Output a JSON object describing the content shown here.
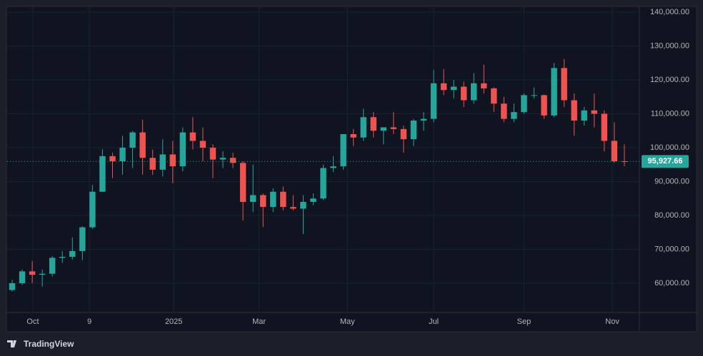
{
  "chart_data": {
    "type": "candlestick",
    "categories": [
      null,
      null,
      null,
      null,
      null,
      null,
      null,
      null,
      null,
      null,
      null,
      null,
      null,
      null,
      null,
      null,
      null,
      null,
      null,
      null,
      null,
      null,
      null,
      null,
      null,
      null,
      null,
      null,
      null,
      null,
      null,
      null,
      null,
      null,
      null,
      null,
      null,
      null,
      null,
      null,
      null,
      null,
      null,
      null,
      null,
      null,
      null,
      null,
      null,
      null,
      null,
      null,
      null,
      null,
      null,
      null,
      null,
      null,
      null,
      null,
      null,
      null
    ],
    "open": [
      58000,
      60000,
      63500,
      62500,
      62800,
      67500,
      67800,
      69500,
      76500,
      87000,
      97500,
      96000,
      100000,
      104500,
      97000,
      93500,
      98000,
      94500,
      104500,
      102000,
      100000,
      96500,
      97000,
      95500,
      84000,
      86000,
      82500,
      87000,
      82500,
      82000,
      84000,
      85000,
      94000,
      94500,
      104000,
      103000,
      109000,
      105000,
      106000,
      105500,
      102500,
      108000,
      108500,
      119000,
      117000,
      118000,
      114000,
      119000,
      117500,
      113000,
      108500,
      110500,
      115500,
      115500,
      109500,
      123500,
      114000,
      108000,
      111000,
      110000,
      102000,
      96000
    ],
    "high": [
      61000,
      64000,
      66500,
      64000,
      68000,
      69500,
      73500,
      76800,
      89000,
      99500,
      98500,
      103500,
      105000,
      108300,
      99500,
      102500,
      102000,
      106000,
      109000,
      106000,
      101000,
      99000,
      98500,
      96000,
      95000,
      86500,
      88000,
      88500,
      86000,
      86000,
      86500,
      95000,
      97500,
      104000,
      105500,
      111500,
      110500,
      106000,
      110500,
      106500,
      108500,
      110500,
      123000,
      123200,
      120000,
      119500,
      122000,
      124500,
      117800,
      115000,
      113000,
      116000,
      117800,
      115700,
      125000,
      126200,
      116000,
      112000,
      116000,
      111000,
      107500,
      101000
    ],
    "low": [
      57500,
      59500,
      60000,
      59000,
      62000,
      66000,
      67000,
      66800,
      76000,
      87000,
      91000,
      92000,
      94000,
      92000,
      92000,
      91500,
      89500,
      93000,
      99500,
      96000,
      91000,
      94000,
      94000,
      78500,
      81000,
      76600,
      81000,
      81500,
      81500,
      74500,
      83000,
      84500,
      92800,
      93500,
      100500,
      102000,
      103000,
      101000,
      104000,
      98500,
      100500,
      105000,
      107500,
      115500,
      114500,
      112000,
      113000,
      116000,
      110500,
      107500,
      107500,
      110000,
      114500,
      108500,
      109000,
      112000,
      103500,
      106500,
      106000,
      98900,
      95500,
      94500
    ],
    "close": [
      60000,
      63500,
      62500,
      62800,
      67500,
      67800,
      69500,
      76500,
      87000,
      97500,
      96000,
      100000,
      104500,
      97000,
      93500,
      98000,
      94500,
      104500,
      102000,
      100000,
      96500,
      97000,
      95500,
      84000,
      86000,
      82500,
      87000,
      82500,
      82000,
      84000,
      85000,
      94000,
      94500,
      104000,
      103000,
      109000,
      105000,
      106000,
      105500,
      102500,
      108000,
      108500,
      119000,
      117000,
      118000,
      114000,
      119000,
      117500,
      113000,
      108500,
      110500,
      115500,
      115500,
      109500,
      123500,
      114000,
      108000,
      111000,
      110000,
      102000,
      96000,
      95927.66
    ],
    "up_color": "#26a69a",
    "down_color": "#ef5350",
    "xlim": [
      -0.5,
      62.5
    ],
    "xticks": [
      {
        "value": 2.06,
        "label": "Oct"
      },
      {
        "value": 7.7,
        "label": "9"
      },
      {
        "value": 16.1,
        "label": "2025"
      },
      {
        "value": 24.6,
        "label": "Mar"
      },
      {
        "value": 33.4,
        "label": "May"
      },
      {
        "value": 42.0,
        "label": "Jul"
      },
      {
        "value": 51.0,
        "label": "Sep"
      },
      {
        "value": 59.8,
        "label": "Nov"
      }
    ],
    "ylim": [
      51370,
      141470
    ],
    "yticks": [
      {
        "value": 60000,
        "label": "60,000.00"
      },
      {
        "value": 70000,
        "label": "70,000.00"
      },
      {
        "value": 80000,
        "label": "80,000.00"
      },
      {
        "value": 90000,
        "label": "90,000.00"
      },
      {
        "value": 100000,
        "label": "100,000.00"
      },
      {
        "value": 110000,
        "label": "110,000.00"
      },
      {
        "value": 120000,
        "label": "120,000.00"
      },
      {
        "value": 130000,
        "label": "130,000.00"
      },
      {
        "value": 140000,
        "label": "140,000.00"
      }
    ],
    "grid": true,
    "last_price": {
      "value": 95927.66,
      "label": "95,927.66"
    }
  },
  "branding": "TradingView"
}
